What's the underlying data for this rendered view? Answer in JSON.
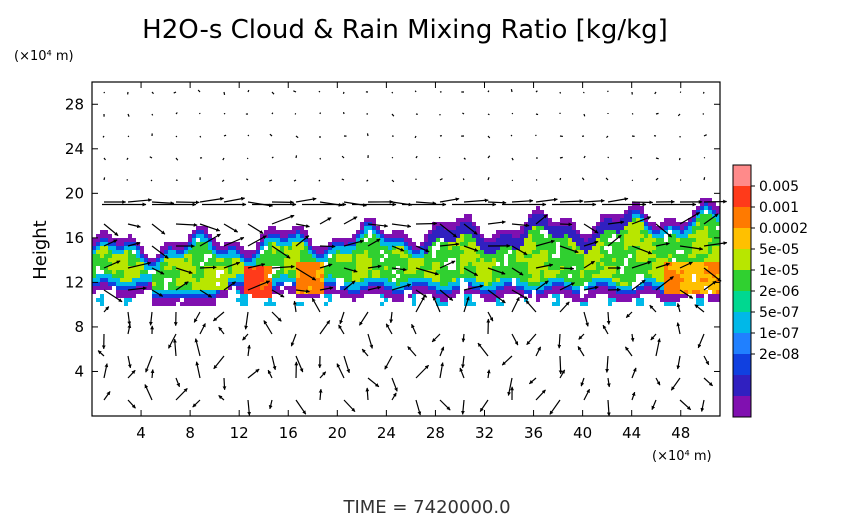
{
  "chart_data": {
    "type": "heatmap",
    "title": "H2O-s Cloud & Rain Mixing Ratio [kg/kg]",
    "ylabel": "Height",
    "xlabel": "",
    "x_unit_label": "(×10⁴ m)",
    "y_unit_label": "(×10⁴ m)",
    "xlim": [
      0,
      51.2
    ],
    "ylim": [
      0,
      30
    ],
    "x_ticks": [
      "4",
      "8",
      "12",
      "16",
      "20",
      "24",
      "28",
      "32",
      "36",
      "40",
      "44",
      "48"
    ],
    "x_tick_values": [
      4,
      8,
      12,
      16,
      20,
      24,
      28,
      32,
      36,
      40,
      44,
      48
    ],
    "y_ticks": [
      "4",
      "8",
      "12",
      "16",
      "20",
      "24",
      "28"
    ],
    "y_tick_values": [
      4,
      8,
      12,
      16,
      20,
      24,
      28
    ],
    "colorbar": {
      "labels": [
        "0.005",
        "0.001",
        "0.0002",
        "5e-05",
        "1e-05",
        "2e-06",
        "5e-07",
        "1e-07",
        "2e-08"
      ],
      "colors": [
        "#ff8a8a",
        "#ff3a1a",
        "#ff7a00",
        "#ffc000",
        "#b8e600",
        "#30d030",
        "#00d890",
        "#00b8e8",
        "#2080ff",
        "#1040e0",
        "#3020c0",
        "#8010b0"
      ]
    },
    "annotation": "TIME  =  7420000.0",
    "cloud_layer": {
      "bottom_height": 10,
      "top_height": 19
    },
    "vector_field": "wind arrows shown on regular grid"
  }
}
